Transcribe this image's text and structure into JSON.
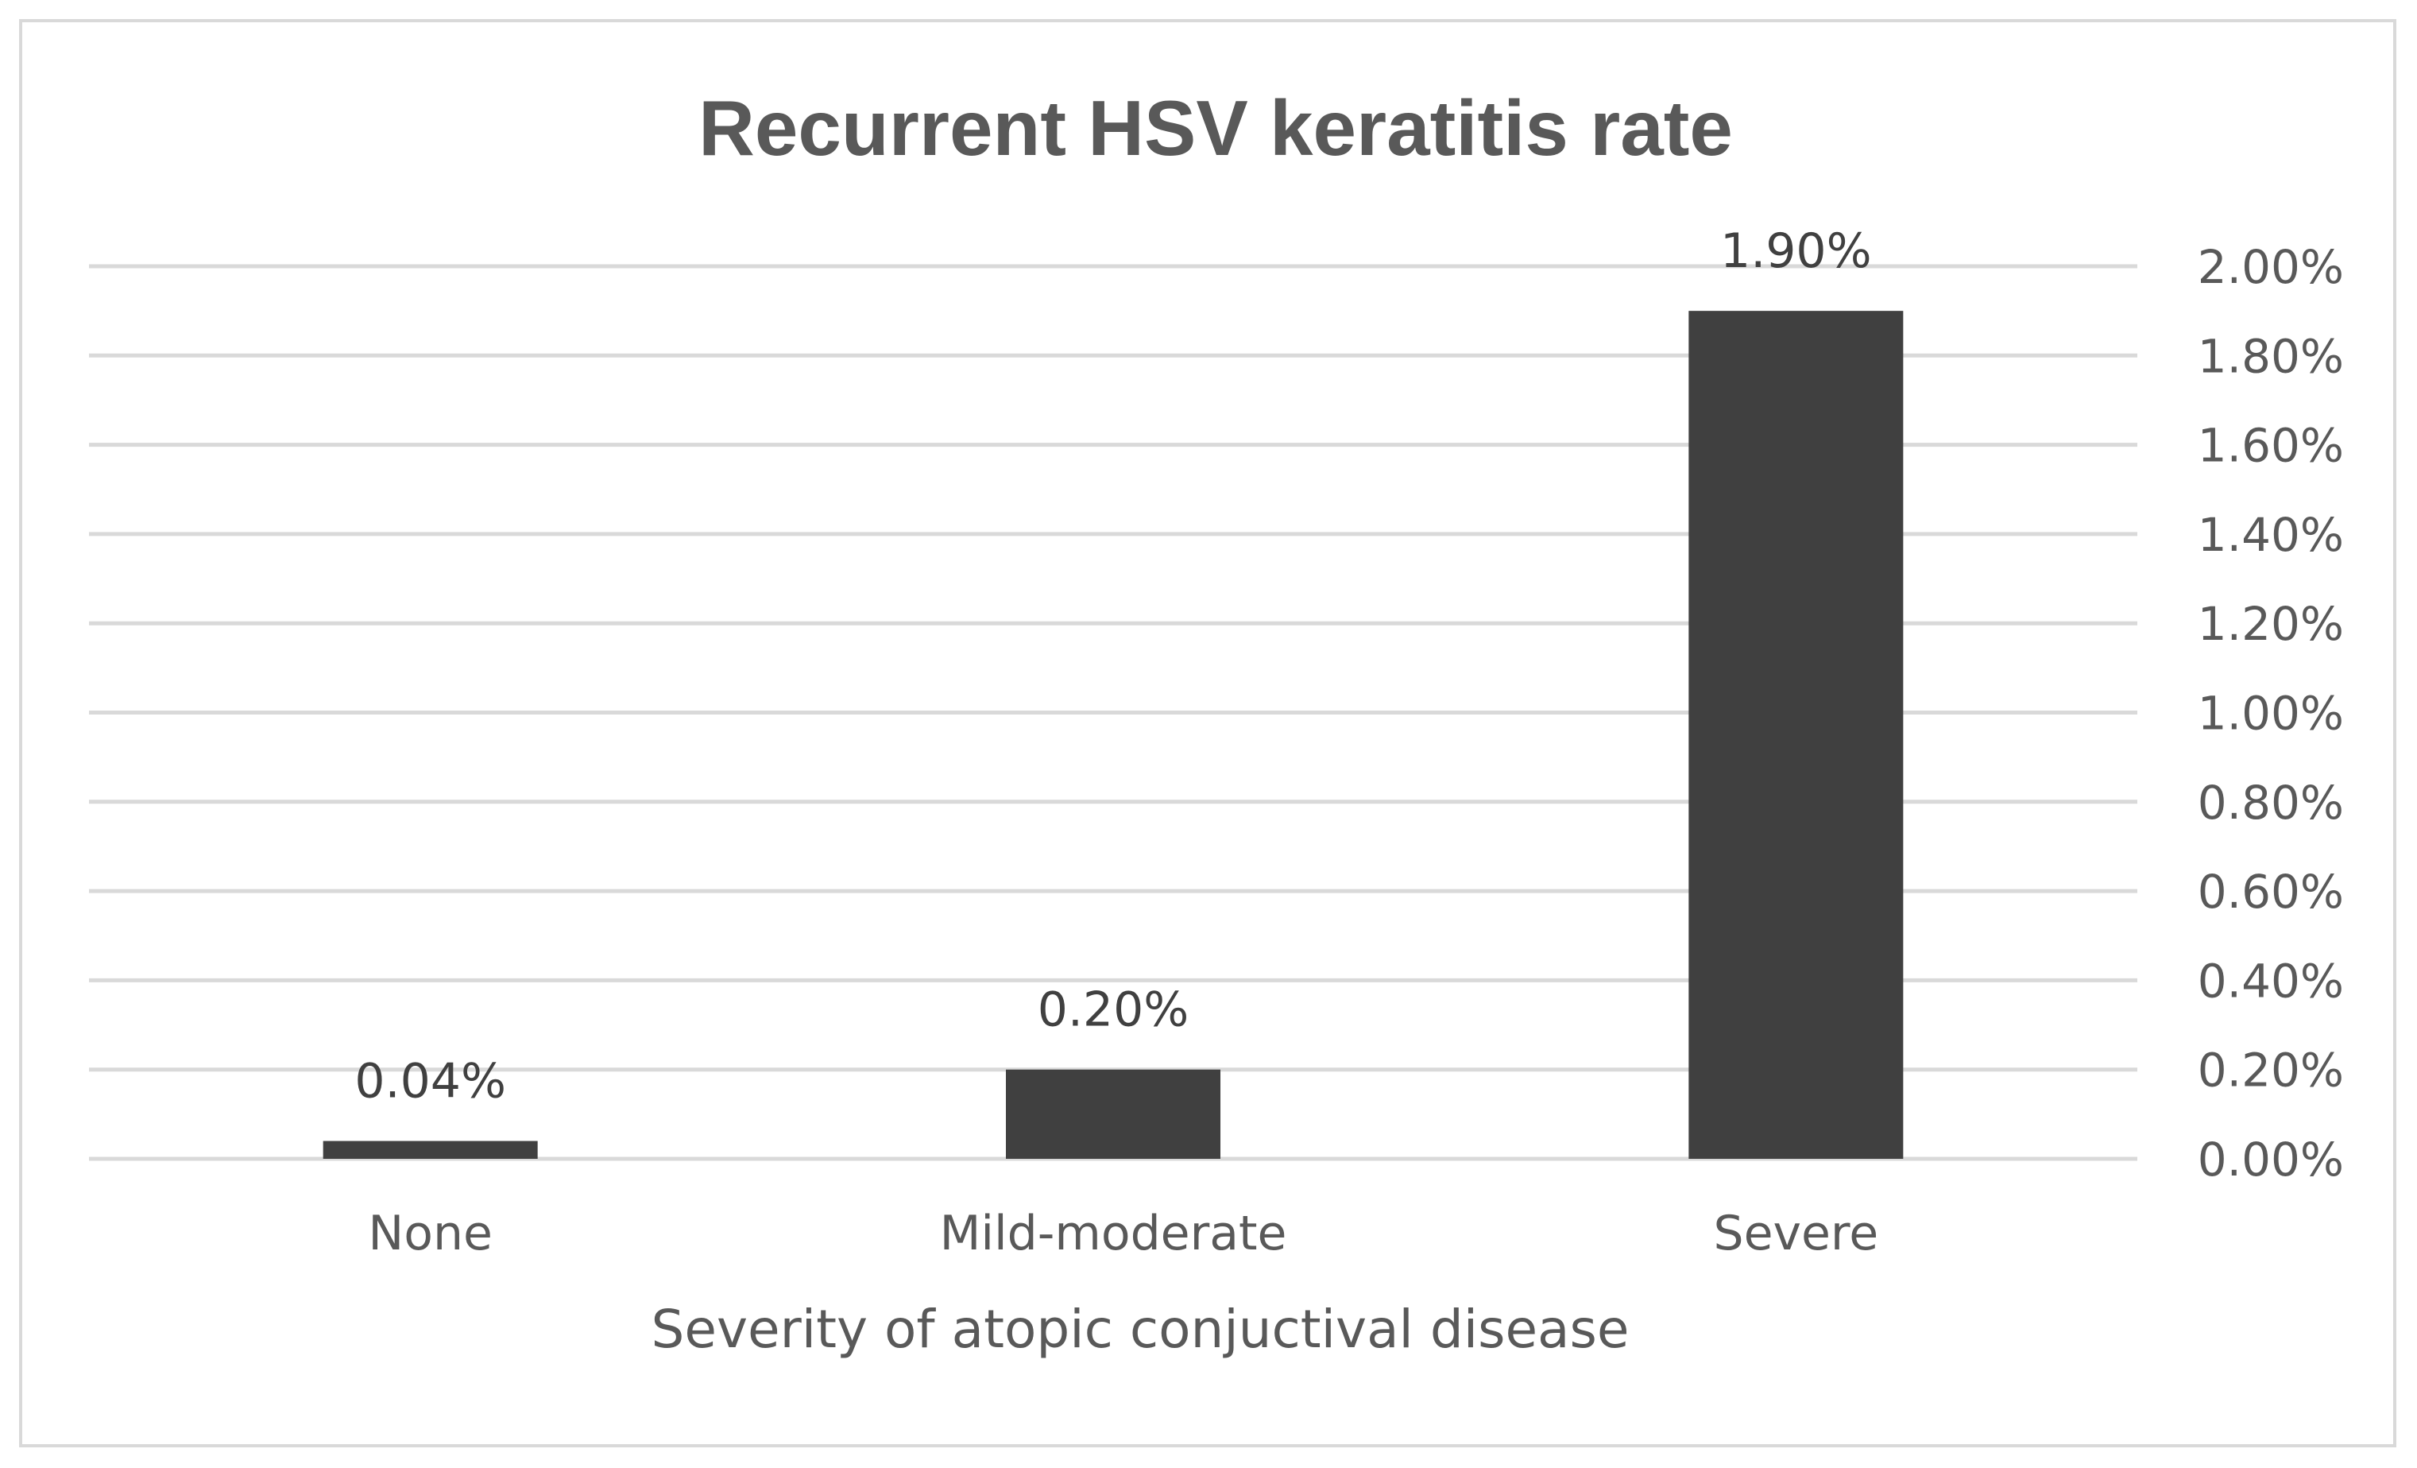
{
  "chart_data": {
    "type": "bar",
    "title": "Recurrent HSV keratitis rate",
    "xlabel": "Severity of atopic conjuctival disease",
    "ylabel": "",
    "categories": [
      "None",
      "Mild-moderate",
      "Severe"
    ],
    "values": [
      0.04,
      0.2,
      1.9
    ],
    "data_labels": [
      "0.04%",
      "0.20%",
      "1.90%"
    ],
    "y_ticks": [
      "0.00%",
      "0.20%",
      "0.40%",
      "0.60%",
      "0.80%",
      "1.00%",
      "1.20%",
      "1.40%",
      "1.60%",
      "1.80%",
      "2.00%"
    ],
    "y_tick_values": [
      0,
      0.2,
      0.4,
      0.6,
      0.8,
      1.0,
      1.2,
      1.4,
      1.6,
      1.8,
      2.0
    ],
    "ylim": [
      0,
      2.0
    ],
    "y_axis_position": "right",
    "grid": true,
    "legend": "none",
    "colors": {
      "bar": "#404040",
      "grid": "#d9d9d9",
      "text": "#595959",
      "border": "#d9d9d9"
    }
  }
}
